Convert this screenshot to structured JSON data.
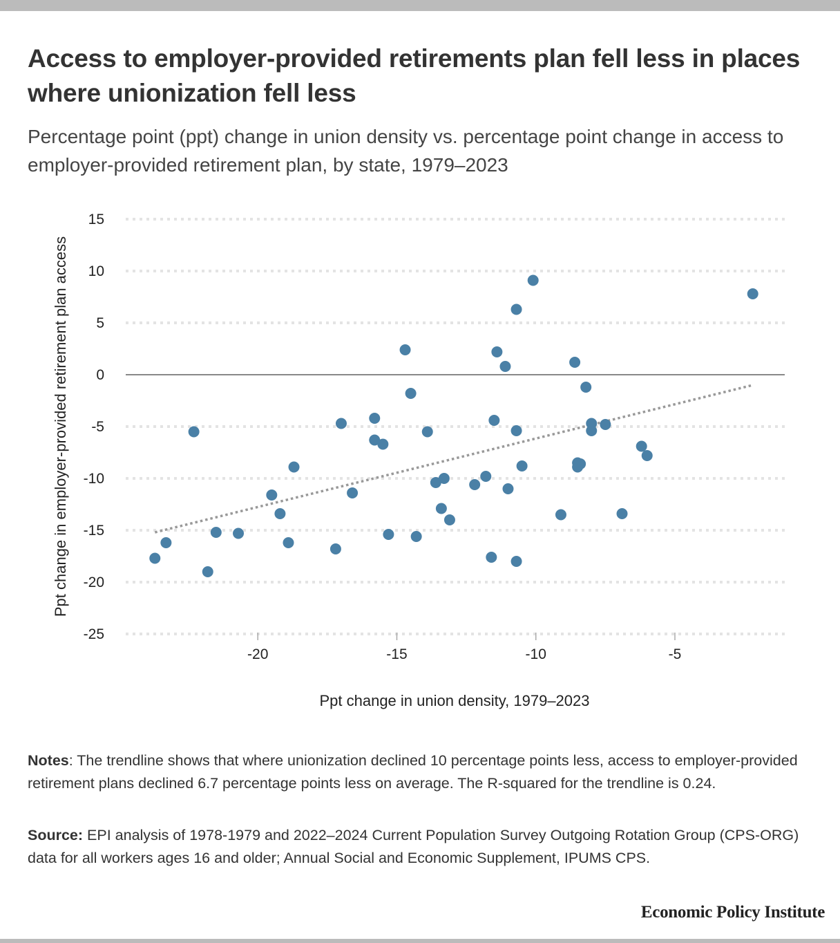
{
  "header": {
    "title": "Access to employer-provided retirements plan fell less in places where unionization fell less",
    "subtitle": "Percentage point (ppt) change in union density vs. percentage point change in access to employer-provided retirement plan, by state, 1979–2023"
  },
  "colors": {
    "point": "#4a80a6",
    "trendline": "#999999",
    "gridline": "#e3e3e3",
    "zero_line": "#888888"
  },
  "chart_data": {
    "type": "scatter",
    "title": "Access to employer-provided retirements plan fell less in places where unionization fell less",
    "subtitle": "Percentage point (ppt) change in union density vs. percentage point change in access to employer-provided retirement plan, by state, 1979–2023",
    "xlabel": "Ppt change in union density, 1979–2023",
    "ylabel": "Ppt change in employer-provided retirement plan access",
    "xlim": [
      -24.75,
      -1.05
    ],
    "ylim": [
      -25,
      15
    ],
    "xticks": [
      -20,
      -15,
      -10,
      -5
    ],
    "yticks": [
      15,
      10,
      5,
      0,
      -5,
      -10,
      -15,
      -20,
      -25
    ],
    "grid": "horizontal dotted",
    "legend": "none",
    "series": [
      {
        "name": "States",
        "points": [
          {
            "x": -22.3,
            "y": -5.5
          },
          {
            "x": -23.3,
            "y": -16.2
          },
          {
            "x": -23.7,
            "y": -17.7
          },
          {
            "x": -21.5,
            "y": -15.2
          },
          {
            "x": -21.8,
            "y": -19.0
          },
          {
            "x": -20.7,
            "y": -15.3
          },
          {
            "x": -17.0,
            "y": -4.7
          },
          {
            "x": -18.7,
            "y": -8.9
          },
          {
            "x": -19.5,
            "y": -11.6
          },
          {
            "x": -19.2,
            "y": -13.4
          },
          {
            "x": -16.6,
            "y": -11.4
          },
          {
            "x": -18.9,
            "y": -16.2
          },
          {
            "x": -17.2,
            "y": -16.8
          },
          {
            "x": -14.7,
            "y": 2.4
          },
          {
            "x": -14.5,
            "y": -1.8
          },
          {
            "x": -15.8,
            "y": -4.2
          },
          {
            "x": -15.8,
            "y": -6.3
          },
          {
            "x": -15.5,
            "y": -6.7
          },
          {
            "x": -13.9,
            "y": -5.5
          },
          {
            "x": -13.6,
            "y": -10.4
          },
          {
            "x": -13.3,
            "y": -10.0
          },
          {
            "x": -13.4,
            "y": -12.9
          },
          {
            "x": -13.1,
            "y": -14.0
          },
          {
            "x": -15.3,
            "y": -15.4
          },
          {
            "x": -14.3,
            "y": -15.6
          },
          {
            "x": -10.1,
            "y": 9.1
          },
          {
            "x": -10.7,
            "y": 6.3
          },
          {
            "x": -11.4,
            "y": 2.2
          },
          {
            "x": -11.1,
            "y": 0.8
          },
          {
            "x": -11.5,
            "y": -4.4
          },
          {
            "x": -10.7,
            "y": -5.4
          },
          {
            "x": -10.5,
            "y": -8.8
          },
          {
            "x": -11.8,
            "y": -9.8
          },
          {
            "x": -12.2,
            "y": -10.6
          },
          {
            "x": -11.0,
            "y": -11.0
          },
          {
            "x": -9.1,
            "y": -13.5
          },
          {
            "x": -11.6,
            "y": -17.6
          },
          {
            "x": -10.7,
            "y": -18.0
          },
          {
            "x": -8.6,
            "y": 1.2
          },
          {
            "x": -8.2,
            "y": -1.2
          },
          {
            "x": -8.0,
            "y": -4.7
          },
          {
            "x": -8.0,
            "y": -5.4
          },
          {
            "x": -7.5,
            "y": -4.8
          },
          {
            "x": -6.2,
            "y": -6.9
          },
          {
            "x": -6.0,
            "y": -7.8
          },
          {
            "x": -8.5,
            "y": -8.5
          },
          {
            "x": -8.4,
            "y": -8.6
          },
          {
            "x": -8.5,
            "y": -8.9
          },
          {
            "x": -6.9,
            "y": -13.4
          },
          {
            "x": -2.2,
            "y": 7.8
          }
        ]
      }
    ],
    "trendline": {
      "style": "dotted",
      "start": {
        "x": -23.7,
        "y": -15.2
      },
      "end": {
        "x": -2.2,
        "y": -1.0
      },
      "slope": 0.67,
      "r_squared": 0.24
    },
    "zero_line_y": 0
  },
  "footer": {
    "notes_label": "Notes",
    "notes_text": ": The trendline shows that where unionization declined 10 percentage points less, access to employer-provided retirement plans declined 6.7 percentage points less on average. The R-squared for the trendline is 0.24.",
    "source_label": "Source:",
    "source_text": " EPI analysis of 1978-1979 and 2022–2024 Current Population Survey Outgoing Rotation Group (CPS-ORG) data for all workers ages 16 and older; Annual Social and Economic Supplement, IPUMS CPS.",
    "brand": "Economic Policy Institute"
  }
}
